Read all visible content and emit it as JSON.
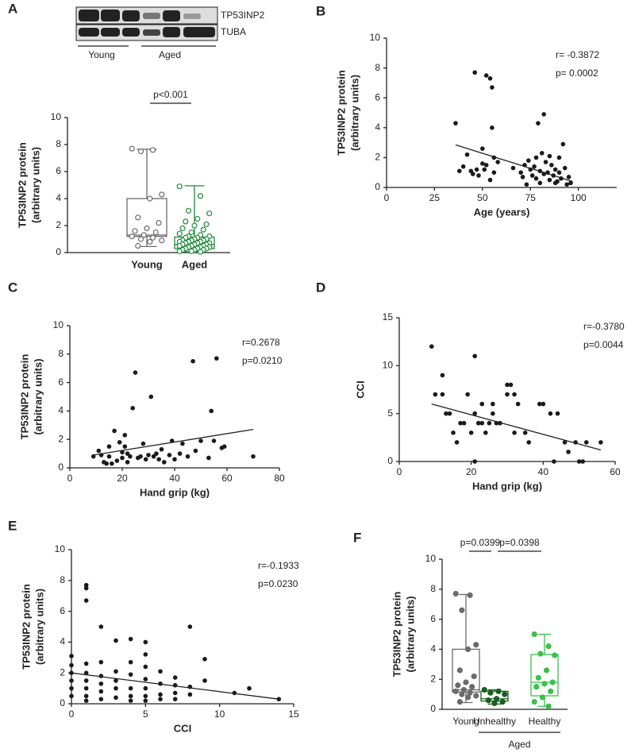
{
  "chart_data": [
    {
      "type": "box",
      "panel": "A",
      "ylabel": [
        "TP53INP2 protein",
        "(arbitrary units)"
      ],
      "blot": {
        "bands": [
          "TP53INP2",
          "TUBA"
        ],
        "lanes": [
          "Young",
          "Aged"
        ]
      },
      "categories": [
        "Young",
        "Aged"
      ],
      "marker": "open",
      "ylim": [
        0,
        10
      ],
      "yticks": [
        0,
        2,
        4,
        6,
        8,
        10
      ],
      "comparisons": [
        "p<0.001"
      ],
      "series": [
        {
          "color": "#6b6b6b",
          "min": 0.45,
          "q1": 1.2,
          "median": 1.3,
          "q3": 4.0,
          "max": 7.65,
          "values": [
            7.7,
            7.6,
            7.5,
            4.3,
            4.0,
            2.6,
            2.2,
            1.8,
            1.6,
            1.5,
            1.3,
            1.2,
            1.1,
            1.0,
            0.9,
            0.8,
            0.5
          ]
        },
        {
          "color": "#1e8c3a",
          "min": 0.05,
          "q1": 0.3,
          "median": 0.6,
          "q3": 1.15,
          "max": 4.95,
          "values": [
            4.9,
            4.2,
            3.1,
            2.9,
            2.5,
            2.3,
            2.1,
            2.0,
            1.8,
            1.7,
            1.5,
            1.4,
            1.3,
            1.2,
            1.2,
            1.1,
            1.1,
            1.0,
            1.0,
            0.9,
            0.9,
            0.9,
            0.8,
            0.8,
            0.8,
            0.7,
            0.7,
            0.7,
            0.6,
            0.6,
            0.6,
            0.5,
            0.5,
            0.5,
            0.4,
            0.4,
            0.4,
            0.3,
            0.3,
            0.3,
            0.2,
            0.2,
            0.2,
            0.1,
            0.1,
            0.05
          ]
        }
      ]
    },
    {
      "type": "scatter",
      "panel": "B",
      "xlabel": "Age (years)",
      "ylabel": [
        "TP53INP2 protein",
        "(arbitrary units)"
      ],
      "stats": [
        "r= -0.3872",
        "p= 0.0002"
      ],
      "color": "#1a1a1a",
      "xlim": [
        0,
        120
      ],
      "xticks": [
        0,
        25,
        50,
        75,
        100
      ],
      "ylim": [
        0,
        10
      ],
      "yticks": [
        0,
        2,
        4,
        6,
        8,
        10
      ],
      "x": [
        36,
        38,
        40,
        42,
        44,
        45,
        46,
        47,
        48,
        50,
        50,
        51,
        52,
        52,
        54,
        54,
        55,
        55,
        56,
        56,
        58,
        66,
        70,
        71,
        72,
        73,
        74,
        75,
        76,
        77,
        78,
        78,
        79,
        80,
        80,
        81,
        82,
        82,
        83,
        84,
        85,
        85,
        86,
        87,
        88,
        88,
        89,
        90,
        90,
        91,
        92,
        93,
        94,
        95,
        96
      ],
      "values": [
        4.3,
        1.1,
        1.4,
        2.2,
        1.1,
        0.9,
        7.7,
        1.2,
        0.8,
        1.6,
        2.6,
        1.2,
        7.5,
        1.5,
        7.3,
        0.5,
        6.7,
        4.0,
        2.0,
        1.0,
        1.7,
        1.3,
        1.0,
        0.7,
        1.5,
        0.2,
        1.8,
        1.2,
        0.8,
        1.4,
        0.6,
        2.0,
        4.3,
        1.1,
        0.3,
        2.3,
        4.9,
        0.9,
        1.7,
        1.0,
        0.5,
        2.1,
        1.5,
        0.8,
        1.2,
        0.3,
        0.4,
        1.0,
        2.0,
        0.6,
        2.9,
        1.3,
        0.2,
        0.7,
        0.3
      ],
      "fit": {
        "x": [
          36,
          97
        ],
        "values": [
          2.85,
          0.4
        ]
      }
    },
    {
      "type": "scatter",
      "panel": "C",
      "xlabel": "Hand grip (kg)",
      "ylabel": [
        "TP53INP2 protein",
        "(arbitrary units)"
      ],
      "stats": [
        "r=0.2678",
        "p=0.0210"
      ],
      "color": "#1a1a1a",
      "xlim": [
        0,
        80
      ],
      "xticks": [
        0,
        20,
        40,
        60,
        80
      ],
      "ylim": [
        0,
        10
      ],
      "yticks": [
        0,
        2,
        4,
        6,
        8,
        10
      ],
      "x": [
        9,
        11,
        12,
        13,
        14,
        15,
        15,
        16,
        17,
        18,
        19,
        20,
        20,
        21,
        21,
        22,
        22,
        23,
        24,
        25,
        26,
        27,
        28,
        29,
        30,
        31,
        32,
        33,
        34,
        35,
        36,
        38,
        39,
        40,
        42,
        43,
        45,
        47,
        48,
        50,
        53,
        54,
        55,
        56,
        58,
        59,
        70
      ],
      "values": [
        0.8,
        1.2,
        0.9,
        0.4,
        0.3,
        1.5,
        0.8,
        0.3,
        2.6,
        0.5,
        1.8,
        1.1,
        0.7,
        2.3,
        1.5,
        1.0,
        0.4,
        0.8,
        4.2,
        6.7,
        0.7,
        0.8,
        1.7,
        0.6,
        0.9,
        5.0,
        0.8,
        1.0,
        0.6,
        1.3,
        0.4,
        0.9,
        1.9,
        0.6,
        1.0,
        1.7,
        0.8,
        7.5,
        1.2,
        1.9,
        0.7,
        4.0,
        1.9,
        7.7,
        1.4,
        1.5,
        0.8
      ],
      "fit": {
        "x": [
          9,
          70
        ],
        "values": [
          0.9,
          2.7
        ]
      }
    },
    {
      "type": "scatter",
      "panel": "D",
      "xlabel": "Hand grip (kg)",
      "ylabel": [
        "CCI"
      ],
      "stats": [
        "r=-0.3780",
        "p=0.0044"
      ],
      "color": "#1a1a1a",
      "xlim": [
        0,
        60
      ],
      "xticks": [
        0,
        20,
        40,
        60
      ],
      "ylim": [
        0,
        15
      ],
      "yticks": [
        0,
        5,
        10,
        15
      ],
      "x": [
        9,
        10,
        12,
        12,
        13,
        14,
        15,
        16,
        17,
        18,
        19,
        20,
        21,
        21,
        21,
        22,
        23,
        23,
        24,
        25,
        26,
        26,
        27,
        28,
        30,
        30,
        31,
        32,
        32,
        33,
        35,
        36,
        39,
        40,
        42,
        43,
        44,
        46,
        47,
        49,
        50,
        51,
        52,
        56
      ],
      "values": [
        12,
        7,
        9,
        7,
        5,
        5,
        3,
        2,
        4,
        4,
        7,
        3,
        11,
        0,
        5,
        4,
        4,
        6,
        3,
        4,
        6,
        5,
        4,
        4,
        7,
        8,
        8,
        3,
        7,
        6,
        3,
        2,
        6,
        6,
        5,
        0,
        5,
        2,
        1,
        2,
        0,
        0,
        2,
        2
      ],
      "fit": {
        "x": [
          9,
          56
        ],
        "values": [
          6.0,
          1.2
        ]
      }
    },
    {
      "type": "scatter",
      "panel": "E",
      "xlabel": "CCI",
      "ylabel": [
        "TP53INP2 protein",
        "(arbitrary units)"
      ],
      "stats": [
        "r=-0.1933",
        "p=0.0230"
      ],
      "color": "#1a1a1a",
      "xlim": [
        0,
        15
      ],
      "xticks": [
        0,
        5,
        10,
        15
      ],
      "ylim": [
        0,
        10
      ],
      "yticks": [
        0,
        2,
        4,
        6,
        8,
        10
      ],
      "x": [
        0,
        0,
        0,
        0,
        0,
        0,
        1,
        1,
        1,
        1,
        1,
        1,
        1,
        1,
        1,
        2,
        2,
        2,
        2,
        2,
        2,
        3,
        3,
        3,
        3,
        3,
        4,
        4,
        4,
        4,
        4,
        4,
        5,
        5,
        5,
        5,
        5,
        5,
        5,
        6,
        6,
        6,
        6,
        7,
        7,
        7,
        7,
        8,
        8,
        8,
        9,
        9,
        11,
        12,
        14
      ],
      "values": [
        0.5,
        1.0,
        1.5,
        2.0,
        2.5,
        3.1,
        7.7,
        7.5,
        6.7,
        2.6,
        2.0,
        1.5,
        1.0,
        0.5,
        0.2,
        5.0,
        2.7,
        1.8,
        1.3,
        0.8,
        0.3,
        4.1,
        2.1,
        1.5,
        1.0,
        0.4,
        4.2,
        2.7,
        1.9,
        1.0,
        0.5,
        0.2,
        4.0,
        3.2,
        2.4,
        1.6,
        1.0,
        0.5,
        0.2,
        2.1,
        1.3,
        0.6,
        0.3,
        1.7,
        1.2,
        0.7,
        0.3,
        5.0,
        1.1,
        0.6,
        2.9,
        1.5,
        0.7,
        1.0,
        0.3
      ],
      "fit": {
        "x": [
          0,
          14
        ],
        "values": [
          2.0,
          0.3
        ]
      }
    },
    {
      "type": "box",
      "panel": "F",
      "ylabel": [
        "TP53INP2 protein",
        "(arbitrary units)"
      ],
      "categories": [
        "Young",
        "Unhealthy",
        "Healthy"
      ],
      "group_label": "Aged",
      "marker": "filled",
      "ylim": [
        0,
        10
      ],
      "yticks": [
        0,
        2,
        4,
        6,
        8,
        10
      ],
      "comparisons": [
        "p=0.0399",
        "p=0.0398"
      ],
      "series": [
        {
          "color": "#6b6b6b",
          "min": 0.45,
          "q1": 1.15,
          "median": 1.3,
          "q3": 4.0,
          "max": 7.65,
          "values": [
            7.7,
            7.6,
            6.6,
            4.3,
            4.0,
            2.6,
            2.2,
            1.8,
            1.6,
            1.5,
            1.3,
            1.2,
            1.1,
            1.0,
            0.9,
            0.8,
            0.5
          ]
        },
        {
          "color": "#1b5e20",
          "min": 0.35,
          "q1": 0.55,
          "median": 0.7,
          "q3": 1.2,
          "max": 1.3,
          "values": [
            1.3,
            1.2,
            1.1,
            1.0,
            0.7,
            0.6,
            0.5,
            0.4
          ]
        },
        {
          "color": "#3cc04a",
          "min": 0.2,
          "q1": 0.9,
          "median": 1.8,
          "q3": 3.65,
          "max": 5.0,
          "values": [
            5.0,
            4.2,
            3.7,
            3.6,
            2.6,
            2.1,
            1.8,
            1.7,
            1.5,
            1.2,
            0.8,
            0.5,
            0.2
          ]
        }
      ]
    }
  ]
}
